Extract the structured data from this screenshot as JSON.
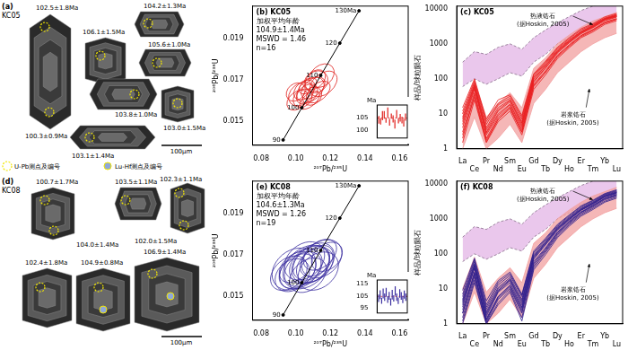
{
  "images": [
    {
      "title": "(a)",
      "subtitle": "KC05",
      "spots": [
        "102.5±1.8Ma",
        "104.2±1.3Ma",
        "106.1±1.5Ma",
        "105.6±1.0Ma",
        "100.3±0.9Ma",
        "103.8±1.0Ma",
        "103.0±1.5Ma",
        "103.1±1.4Ma"
      ],
      "scale_bar": "100μm",
      "key": [
        "U-Pb测点及编号",
        "Lu-Hf测点及编号"
      ]
    },
    {
      "title": "(d)",
      "subtitle": "KC08",
      "spots": [
        "100.7±1.7Ma",
        "103.5±1.1Ma",
        "102.3±1.1Ma",
        "104.0±1.4Ma",
        "102.0±1.5Ma",
        "106.9±1.4Ma",
        "102.4±1.8Ma",
        "104.9±0.8Ma"
      ],
      "scale_bar": "100μm"
    }
  ],
  "chart_data": [
    {
      "type": "scatter",
      "title": "(b)",
      "subtitle": "KC05",
      "xlabel": "²⁰⁷Pb/²³⁵U",
      "ylabel": "²⁰⁶Pb/²³⁸U",
      "xlim": [
        0.075,
        0.165
      ],
      "xticks": [
        0.08,
        {
          "value": 0.1,
          "label": "0.10"
        },
        0.12,
        0.14,
        0.16
      ],
      "ylim": [
        0.0138,
        0.0206
      ],
      "yticks": [
        0.015,
        0.017,
        0.019
      ],
      "grid": false,
      "concordia": {
        "color": "#000000",
        "ages": [
          90,
          100,
          110,
          120,
          130
        ],
        "value_labels": [
          "90",
          "100",
          "110",
          "120",
          "130Ma"
        ],
        "x": [
          0.09268,
          0.1035,
          0.11442,
          0.12545,
          0.13659
        ],
        "y": [
          0.014059,
          0.015633,
          0.01721,
          0.018789,
          0.020371
        ]
      },
      "ellipses": {
        "color": "#e0201c",
        "x": [
          0.1065,
          0.11,
          0.112,
          0.104,
          0.1085,
          0.115,
          0.101,
          0.107,
          0.113,
          0.105,
          0.1095,
          0.116,
          0.103,
          0.111,
          0.108,
          0.1
        ],
        "y": [
          0.0163,
          0.0166,
          0.0169,
          0.0161,
          0.0165,
          0.0172,
          0.016,
          0.0167,
          0.0164,
          0.0165,
          0.0162,
          0.0168,
          0.0163,
          0.017,
          0.016,
          0.0164
        ],
        "x_error": [
          0.007,
          0.008,
          0.007,
          0.006,
          0.009,
          0.008,
          0.007,
          0.006,
          0.008,
          0.007,
          0.006,
          0.009,
          0.008,
          0.007,
          0.007,
          0.006
        ],
        "y_error": [
          0.0004,
          0.0004,
          0.0005,
          0.0004,
          0.0005,
          0.0005,
          0.0004,
          0.0003,
          0.0004,
          0.0004,
          0.0004,
          0.0005,
          0.0005,
          0.0004,
          0.0003,
          0.0004
        ]
      },
      "annotations": [
        "加权平均年龄",
        "104.9±1.4Ma",
        "MSWD = 1.46",
        "n=16"
      ],
      "inset": {
        "ylabel": "Ma",
        "ylim": [
          97,
          110
        ],
        "yticks": [
          100,
          105
        ],
        "color": "#e0201c",
        "mean": 104.9,
        "values": [
          104.2,
          103.5,
          105.8,
          106.1,
          104.0,
          107.0,
          103.2,
          105.6,
          104.5,
          102.5,
          106.5,
          103.8,
          105.0,
          104.1,
          103.0,
          105.2
        ],
        "errors": [
          1.5,
          1.2,
          1.8,
          1.5,
          1.0,
          2.0,
          1.3,
          1.0,
          1.4,
          1.8,
          1.6,
          1.0,
          1.5,
          1.3,
          1.5,
          1.4
        ]
      }
    },
    {
      "type": "line",
      "title": "(c)",
      "subtitle": "KC05",
      "ylabel": "样品/球粒陨石",
      "categories": [
        "La",
        "Ce",
        "Pr",
        "Nd",
        "Sm",
        "Eu",
        "Gd",
        "Tb",
        "Dy",
        "Ho",
        "Er",
        "Tm",
        "Yb",
        "Lu"
      ],
      "log": "y",
      "ylim": [
        1,
        12000
      ],
      "yticks": [
        1,
        10,
        100,
        1000,
        10000
      ],
      "grid": false,
      "color": "#e8191a",
      "fields": [
        {
          "name": "热液锆石",
          "source": "(据Hoskin, 2005)",
          "color": "#e3b5e6",
          "line_style": "dashed",
          "lower": [
            60,
            100,
            70,
            100,
            150,
            120,
            300,
            500,
            1000,
            1500,
            2500,
            3500,
            5000,
            6000
          ],
          "upper": [
            300,
            600,
            500,
            800,
            1000,
            700,
            1500,
            2500,
            4000,
            6000,
            9000,
            12000,
            16000,
            18000
          ]
        },
        {
          "name": "岩浆锆石",
          "source": "(据Hoskin, 2005)",
          "color": "#f2a0a0",
          "line_style": "solid",
          "lower": [
            1,
            8,
            1,
            2,
            5,
            1.5,
            20,
            50,
            150,
            300,
            600,
            1000,
            1500,
            2000
          ],
          "upper": [
            10,
            80,
            8,
            20,
            40,
            15,
            200,
            400,
            1000,
            1800,
            3000,
            4500,
            6000,
            8000
          ]
        }
      ],
      "series": [
        {
          "values": [
            4,
            50,
            2.5,
            9,
            18,
            4,
            80,
            200,
            550,
            1100,
            2000,
            3000,
            4800,
            6000
          ]
        },
        {
          "values": [
            8,
            70,
            4,
            15,
            25,
            6,
            110,
            260,
            650,
            1250,
            2200,
            3300,
            5200,
            6500
          ]
        },
        {
          "values": [
            2,
            35,
            1.8,
            7,
            14,
            3,
            60,
            150,
            420,
            850,
            1600,
            2400,
            3900,
            5000
          ]
        },
        {
          "values": [
            12,
            90,
            6,
            20,
            32,
            8,
            130,
            300,
            750,
            1400,
            2500,
            3600,
            5500,
            7000
          ]
        },
        {
          "values": [
            3,
            40,
            2,
            8,
            16,
            3.5,
            70,
            170,
            480,
            950,
            1750,
            2600,
            4200,
            5300
          ]
        },
        {
          "values": [
            6,
            60,
            3,
            12,
            22,
            5,
            95,
            230,
            600,
            1150,
            2100,
            3100,
            5000,
            6200
          ]
        },
        {
          "values": [
            1.5,
            25,
            1.5,
            6,
            12,
            2.5,
            50,
            130,
            380,
            780,
            1500,
            2200,
            3600,
            4600
          ]
        },
        {
          "values": [
            10,
            80,
            5,
            18,
            28,
            7,
            120,
            280,
            700,
            1300,
            2300,
            3400,
            5300,
            6700
          ]
        },
        {
          "values": [
            5,
            55,
            2.8,
            10,
            19,
            4.5,
            85,
            210,
            560,
            1080,
            1950,
            2900,
            4600,
            5800
          ]
        },
        {
          "values": [
            2.5,
            30,
            1.6,
            7,
            15,
            3,
            65,
            160,
            450,
            900,
            1700,
            2500,
            4000,
            5100
          ]
        },
        {
          "values": [
            15,
            100,
            7,
            25,
            35,
            9,
            140,
            320,
            800,
            1500,
            2700,
            3800,
            5900,
            7400
          ]
        },
        {
          "values": [
            7,
            65,
            3.5,
            13,
            24,
            5.5,
            100,
            240,
            620,
            1200,
            2150,
            3200,
            5100,
            6400
          ]
        }
      ]
    },
    {
      "type": "scatter",
      "title": "(e)",
      "subtitle": "KC08",
      "xlabel": "²⁰⁷Pb/²³⁵U",
      "ylabel": "²⁰⁶Pb/²³⁸U",
      "xlim": [
        0.075,
        0.165
      ],
      "xticks": [
        0.08,
        {
          "value": 0.1,
          "label": "0.10"
        },
        0.12,
        0.14,
        0.16
      ],
      "ylim": [
        0.0138,
        0.0206
      ],
      "yticks": [
        0.015,
        0.017,
        0.019
      ],
      "grid": false,
      "concordia": {
        "color": "#000000",
        "ages": [
          90,
          100,
          110,
          120,
          130
        ],
        "value_labels": [
          "90",
          "100",
          "110",
          "120",
          "130Ma"
        ],
        "x": [
          0.09268,
          0.1035,
          0.11442,
          0.12545,
          0.13659
        ],
        "y": [
          0.014059,
          0.015633,
          0.01721,
          0.018789,
          0.020371
        ]
      },
      "ellipses": {
        "color": "#3b2fa0",
        "x": [
          0.104,
          0.11,
          0.098,
          0.115,
          0.106,
          0.101,
          0.112,
          0.108,
          0.096,
          0.118,
          0.103,
          0.109,
          0.113,
          0.1,
          0.107,
          0.105,
          0.111,
          0.099,
          0.114
        ],
        "y": [
          0.0163,
          0.0166,
          0.016,
          0.0168,
          0.0164,
          0.0162,
          0.0167,
          0.0165,
          0.0161,
          0.0169,
          0.0163,
          0.0166,
          0.0162,
          0.0164,
          0.016,
          0.0167,
          0.0165,
          0.0163,
          0.017
        ],
        "x_error": [
          0.012,
          0.014,
          0.011,
          0.013,
          0.015,
          0.012,
          0.011,
          0.013,
          0.012,
          0.01,
          0.014,
          0.012,
          0.013,
          0.011,
          0.012,
          0.013,
          0.012,
          0.014,
          0.011
        ],
        "y_error": [
          0.0007,
          0.0008,
          0.0007,
          0.0008,
          0.0009,
          0.0007,
          0.0006,
          0.0008,
          0.0007,
          0.0006,
          0.0008,
          0.0007,
          0.0008,
          0.0006,
          0.0007,
          0.0008,
          0.0007,
          0.0009,
          0.0006
        ]
      },
      "annotations": [
        "加权平均年龄",
        "104.6±1.3Ma",
        "MSWD = 1.26",
        "n=19"
      ],
      "inset": {
        "ylabel": "Ma",
        "ylim": [
          91,
          118
        ],
        "yticks": [
          95,
          105,
          115
        ],
        "color": "#3b2fa0",
        "mean": 104.6,
        "values": [
          103,
          106,
          101,
          107,
          104,
          108,
          102,
          105,
          100,
          106,
          103,
          109,
          104,
          101,
          107,
          105,
          102,
          106,
          104
        ],
        "errors": [
          3,
          3.5,
          2.5,
          4,
          3,
          3.5,
          2.8,
          3.2,
          3,
          4,
          2.6,
          3.8,
          3,
          2.7,
          3.5,
          3.1,
          2.9,
          3.3,
          3
        ]
      }
    },
    {
      "type": "line",
      "title": "(f)",
      "subtitle": "KC08",
      "ylabel": "样品/球粒陨石",
      "categories": [
        "La",
        "Ce",
        "Pr",
        "Nd",
        "Sm",
        "Eu",
        "Gd",
        "Tb",
        "Dy",
        "Ho",
        "Er",
        "Tm",
        "Yb",
        "Lu"
      ],
      "log": "y",
      "ylim": [
        1,
        12000
      ],
      "yticks": [
        1,
        10,
        100,
        1000,
        10000
      ],
      "grid": false,
      "color": "#2a1a8c",
      "fields": [
        {
          "name": "热液锆石",
          "source": "(据Hoskin, 2005)",
          "color": "#e3b5e6",
          "line_style": "dashed",
          "lower": [
            60,
            100,
            70,
            100,
            150,
            120,
            300,
            500,
            1000,
            1500,
            2500,
            3500,
            5000,
            6000
          ],
          "upper": [
            300,
            600,
            500,
            800,
            1000,
            700,
            1500,
            2500,
            4000,
            6000,
            9000,
            12000,
            16000,
            18000
          ]
        },
        {
          "name": "岩浆锆石",
          "source": "(据Hoskin, 2005)",
          "color": "#f2a0a0",
          "line_style": "solid",
          "lower": [
            1,
            8,
            1,
            2,
            5,
            1.5,
            20,
            50,
            150,
            300,
            600,
            1000,
            1500,
            2000
          ],
          "upper": [
            10,
            80,
            8,
            20,
            40,
            15,
            200,
            400,
            1000,
            1800,
            3000,
            4500,
            6000,
            8000
          ]
        }
      ],
      "series": [
        {
          "values": [
            2,
            30,
            1.2,
            6,
            12,
            2.5,
            55,
            140,
            400,
            820,
            1550,
            2350,
            3800,
            4900
          ]
        },
        {
          "values": [
            4,
            45,
            2,
            9,
            18,
            4,
            80,
            200,
            520,
            1000,
            1850,
            2800,
            4400,
            5600
          ]
        },
        {
          "values": [
            1.2,
            18,
            1,
            4,
            9,
            1.5,
            40,
            110,
            320,
            680,
            1300,
            2000,
            3200,
            4200
          ]
        },
        {
          "values": [
            6,
            60,
            3,
            13,
            24,
            6,
            100,
            240,
            600,
            1150,
            2100,
            3100,
            4900,
            6200
          ]
        },
        {
          "values": [
            1.5,
            22,
            1.1,
            5,
            10,
            2,
            45,
            120,
            350,
            730,
            1400,
            2150,
            3500,
            4500
          ]
        },
        {
          "values": [
            3,
            38,
            1.6,
            8,
            15,
            3,
            70,
            180,
            470,
            930,
            1750,
            2600,
            4200,
            5300
          ]
        },
        {
          "values": [
            9,
            75,
            4.5,
            17,
            30,
            7,
            120,
            280,
            690,
            1300,
            2350,
            3400,
            5300,
            6800
          ]
        },
        {
          "values": [
            2.5,
            28,
            1.4,
            6,
            13,
            2.8,
            60,
            150,
            420,
            860,
            1600,
            2450,
            3900,
            5000
          ]
        },
        {
          "values": [
            1,
            15,
            1,
            3.5,
            8,
            1.2,
            35,
            95,
            290,
            620,
            1200,
            1850,
            3000,
            3900
          ]
        },
        {
          "values": [
            5,
            52,
            2.6,
            11,
            21,
            5,
            90,
            220,
            560,
            1080,
            1980,
            2950,
            4700,
            5900
          ]
        },
        {
          "values": [
            3.5,
            40,
            1.8,
            8.5,
            17,
            3.5,
            75,
            190,
            500,
            970,
            1800,
            2700,
            4300,
            5500
          ]
        },
        {
          "values": [
            7,
            68,
            3.5,
            15,
            27,
            6.5,
            110,
            260,
            650,
            1230,
            2250,
            3300,
            5100,
            6500
          ]
        },
        {
          "values": [
            2,
            25,
            1.3,
            5.5,
            11,
            2.2,
            50,
            130,
            380,
            780,
            1500,
            2300,
            3700,
            4700
          ]
        },
        {
          "values": [
            4.5,
            48,
            2.2,
            10,
            19,
            4.5,
            85,
            210,
            540,
            1040,
            1900,
            2850,
            4550,
            5750
          ]
        }
      ]
    }
  ]
}
